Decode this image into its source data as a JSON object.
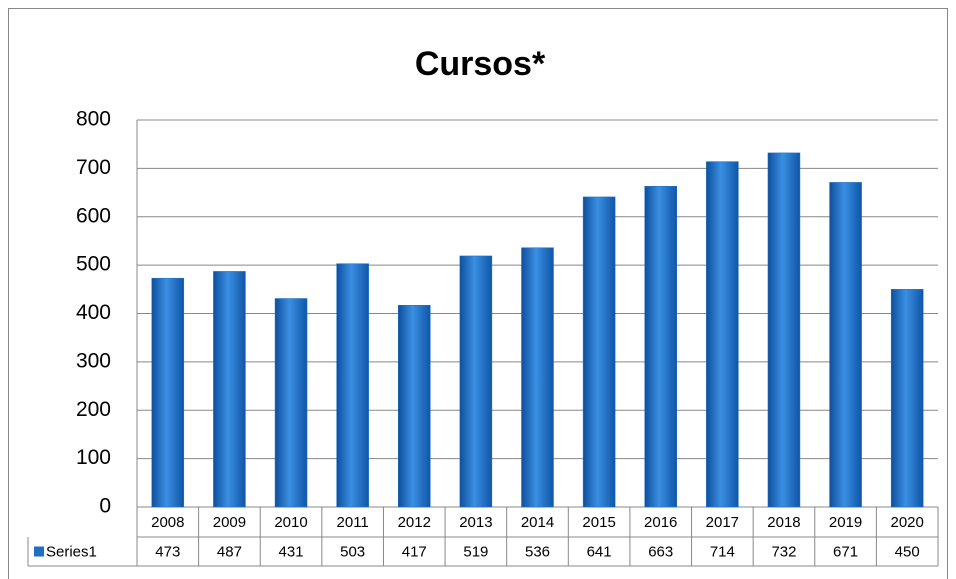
{
  "chart_data": {
    "type": "bar",
    "title": "Cursos*",
    "categories": [
      "2008",
      "2009",
      "2010",
      "2011",
      "2012",
      "2013",
      "2014",
      "2015",
      "2016",
      "2017",
      "2018",
      "2019",
      "2020"
    ],
    "series": [
      {
        "name": "Series1",
        "color": "#1f6fc5",
        "values": [
          473,
          487,
          431,
          503,
          417,
          519,
          536,
          641,
          663,
          714,
          732,
          671,
          450
        ]
      }
    ],
    "ylim": [
      0,
      800
    ],
    "yticks": [
      0,
      100,
      200,
      300,
      400,
      500,
      600,
      700,
      800
    ],
    "grid": true
  }
}
